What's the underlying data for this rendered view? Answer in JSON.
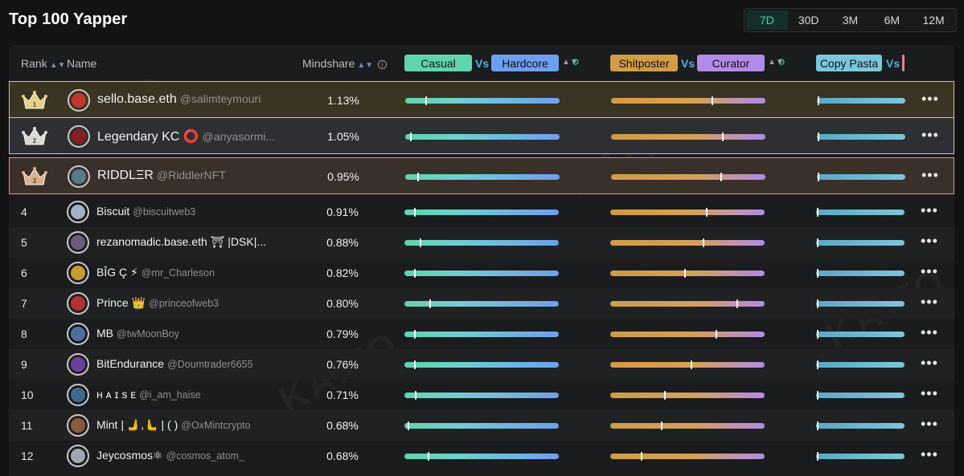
{
  "title": "Top 100 Yapper",
  "periods": [
    {
      "label": "7D",
      "active": true
    },
    {
      "label": "30D",
      "active": false
    },
    {
      "label": "3M",
      "active": false
    },
    {
      "label": "6M",
      "active": false
    },
    {
      "label": "12M",
      "active": false
    }
  ],
  "columns": {
    "rank": "Rank",
    "name": "Name",
    "mindshare": "Mindshare",
    "casual": "Casual",
    "vs": "Vs",
    "hardcore": "Hardcore",
    "shitposter": "Shitposter",
    "curator": "Curator",
    "copy_pasta": "Copy Pasta"
  },
  "watermark": "KAITO",
  "colors": {
    "accent": "#3fd5b0",
    "casual": "#5fd4ad",
    "hardcore": "#6d9ff0",
    "shitposter": "#d29b45",
    "curator": "#b28ae8",
    "copy_pasta": "#7ac6dc",
    "gold": "#d4c28a",
    "silver": "#c5c5c5",
    "bronze": "#caa680"
  },
  "rows": [
    {
      "rank": "1",
      "name": "sello.base.eth",
      "handle": "@salimteymouri",
      "mindshare": "1.13%",
      "casual_hardcore": 0.13,
      "shit_curator": 0.65,
      "copy": 0.0,
      "avatar_color": "#c0392b"
    },
    {
      "rank": "2",
      "name": "Legendary KC ⭕",
      "handle": "@anyasormi...",
      "mindshare": "1.05%",
      "casual_hardcore": 0.03,
      "shit_curator": 0.72,
      "copy": 0.0,
      "avatar_color": "#8b1e1e"
    },
    {
      "rank": "3",
      "name": "RIDDLΞR",
      "handle": "@RiddlerNFT",
      "mindshare": "0.95%",
      "casual_hardcore": 0.08,
      "shit_curator": 0.71,
      "copy": 0.0,
      "avatar_color": "#567a8c"
    },
    {
      "rank": "4",
      "name": "Biscuit",
      "handle": "@biscuitweb3",
      "mindshare": "0.91%",
      "casual_hardcore": 0.06,
      "shit_curator": 0.62,
      "copy": 0.0,
      "avatar_color": "#9fb3c8"
    },
    {
      "rank": "5",
      "name": "rezanomadic.base.eth ⛩ |DSK|...",
      "handle": "",
      "mindshare": "0.88%",
      "casual_hardcore": 0.1,
      "shit_curator": 0.6,
      "copy": 0.0,
      "avatar_color": "#6a5c7e"
    },
    {
      "rank": "6",
      "name": "BÎG Ç ⚡",
      "handle": "@mr_Charleson",
      "mindshare": "0.82%",
      "casual_hardcore": 0.06,
      "shit_curator": 0.48,
      "copy": 0.0,
      "avatar_color": "#c99b2e"
    },
    {
      "rank": "7",
      "name": "Prince 👑",
      "handle": "@princeofweb3",
      "mindshare": "0.80%",
      "casual_hardcore": 0.16,
      "shit_curator": 0.82,
      "copy": 0.0,
      "avatar_color": "#b0322d"
    },
    {
      "rank": "8",
      "name": "MB",
      "handle": "@twMoonBoy",
      "mindshare": "0.79%",
      "casual_hardcore": 0.06,
      "shit_curator": 0.68,
      "copy": 0.0,
      "avatar_color": "#4d6fa0"
    },
    {
      "rank": "9",
      "name": "BitEndurance",
      "handle": "@Doumtrader6655",
      "mindshare": "0.76%",
      "casual_hardcore": 0.06,
      "shit_curator": 0.52,
      "copy": 0.0,
      "avatar_color": "#6b3fa0"
    },
    {
      "rank": "10",
      "name": "ʜ ᴀ ɪ s ᴇ",
      "handle": "@i_am_haise",
      "mindshare": "0.71%",
      "casual_hardcore": 0.07,
      "shit_curator": 0.35,
      "copy": 0.0,
      "avatar_color": "#3f6a8f"
    },
    {
      "rank": "11",
      "name": "Mint | 🫸,🫷 | ( )",
      "handle": "@OxMintcrypto",
      "mindshare": "0.68%",
      "casual_hardcore": 0.02,
      "shit_curator": 0.33,
      "copy": 0.0,
      "avatar_color": "#8b5a3c"
    },
    {
      "rank": "12",
      "name": "Jeycosmos⚛",
      "handle": "@cosmos_atom_",
      "mindshare": "0.68%",
      "casual_hardcore": 0.15,
      "shit_curator": 0.2,
      "copy": 0.0,
      "avatar_color": "#a0a7b0"
    }
  ]
}
